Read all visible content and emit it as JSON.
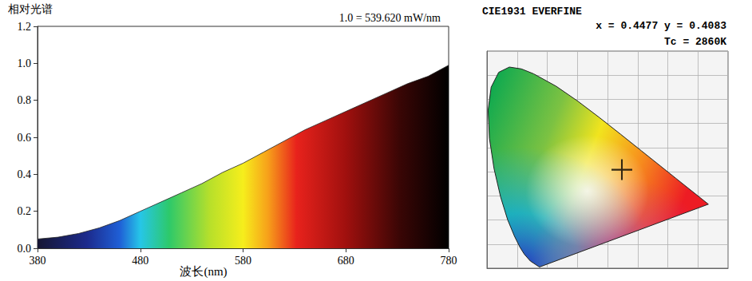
{
  "chart_data": [
    {
      "type": "area",
      "y_label": "相对光谱",
      "x_label": "波长(nm)",
      "annotation": "1.0 = 539.620 mW/nm",
      "x": [
        380,
        400,
        420,
        440,
        460,
        480,
        500,
        520,
        540,
        560,
        580,
        600,
        620,
        640,
        660,
        680,
        700,
        720,
        740,
        760,
        780
      ],
      "values": [
        0.05,
        0.06,
        0.08,
        0.11,
        0.15,
        0.2,
        0.25,
        0.3,
        0.35,
        0.41,
        0.46,
        0.52,
        0.58,
        0.64,
        0.69,
        0.74,
        0.79,
        0.84,
        0.89,
        0.93,
        0.99
      ],
      "xlim": [
        380,
        780
      ],
      "xticks": [
        380,
        480,
        580,
        680,
        780
      ],
      "ylim": [
        0,
        1.2
      ],
      "yticks": [
        {
          "value": 0,
          "label": "0.0"
        },
        {
          "value": 0.2,
          "label": "0.2"
        },
        {
          "value": 0.4,
          "label": "0.4"
        },
        {
          "value": 0.6,
          "label": "0.6"
        },
        {
          "value": 0.8,
          "label": "0.8"
        },
        {
          "value": 1,
          "label": "1.0"
        },
        {
          "value": 1.2,
          "label": "1.2"
        }
      ],
      "grid": false
    },
    {
      "type": "chromaticity",
      "title": "CIE1931 EVERFINE",
      "annotations": [
        "x = 0.4477 y = 0.4083",
        "Tc = 2860K"
      ],
      "point": {
        "x": 0.4477,
        "y": 0.4083
      },
      "marker": "cross",
      "locus": {
        "x": [
          0.1741,
          0.144,
          0.1241,
          0.1096,
          0.0913,
          0.0687,
          0.0454,
          0.0235,
          0.0082,
          0.0039,
          0.0139,
          0.0389,
          0.0743,
          0.1142,
          0.1547,
          0.2296,
          0.3016,
          0.3731,
          0.4441,
          0.5125,
          0.5752,
          0.627,
          0.6915,
          0.7347
        ],
        "y": [
          0.005,
          0.0297,
          0.0578,
          0.0868,
          0.1327,
          0.2007,
          0.295,
          0.4127,
          0.5384,
          0.6548,
          0.7502,
          0.812,
          0.8338,
          0.8262,
          0.8059,
          0.7543,
          0.6923,
          0.6245,
          0.5547,
          0.4866,
          0.4242,
          0.3725,
          0.3083,
          0.2653
        ]
      },
      "xlim": [
        0,
        0.8
      ],
      "xticks": [
        0,
        0.1,
        0.2,
        0.3,
        0.4,
        0.5,
        0.6,
        0.7,
        0.8
      ],
      "ylim": [
        0,
        0.9
      ],
      "yticks": [
        0,
        0.1,
        0.2,
        0.3,
        0.4,
        0.5,
        0.6,
        0.7,
        0.8,
        0.9
      ],
      "grid": true,
      "tick_labels": false
    }
  ]
}
